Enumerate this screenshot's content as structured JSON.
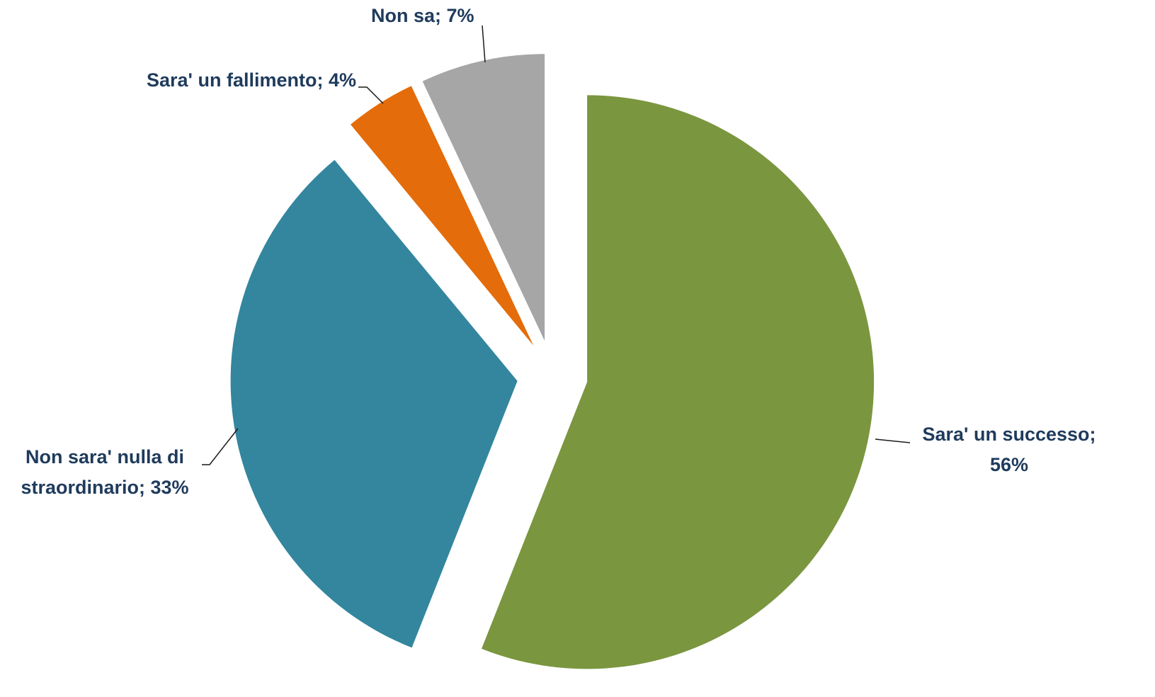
{
  "chart_data": {
    "type": "pie",
    "values": [
      56,
      33,
      4,
      7
    ],
    "value_labels": [
      "Sara' un successo; 56%",
      "Non sara' nulla di straordinario; 33%",
      "Sara' un fallimento; 4%",
      "Non sa; 7%"
    ],
    "colors": [
      "#7a963f",
      "#33869e",
      "#e46c0a",
      "#a6a6a6"
    ],
    "exploded": true
  }
}
